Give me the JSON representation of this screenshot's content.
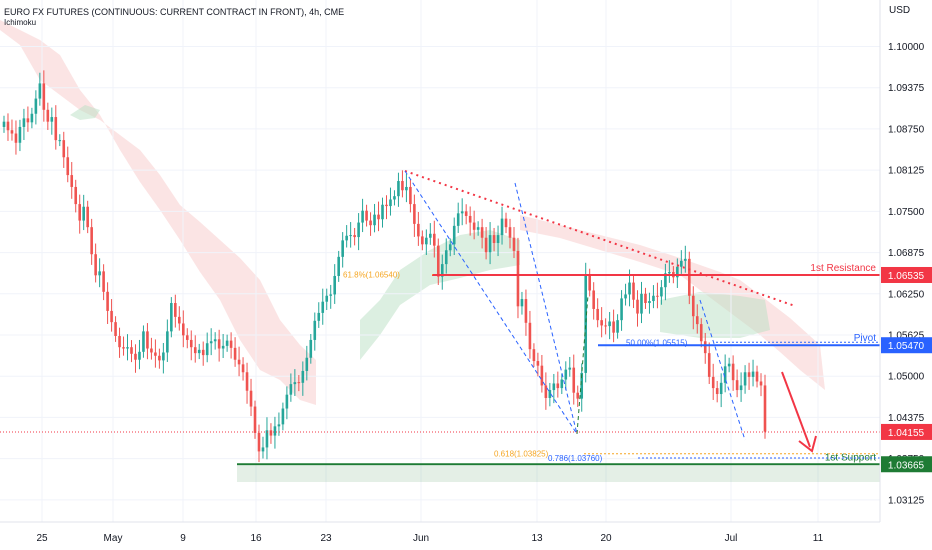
{
  "header": {
    "title": "EURO FX FUTURES (CONTINUOUS: CURRENT CONTRACT IN FRONT), 4h, CME",
    "indicator": "Ichimoku",
    "currency": "USD"
  },
  "chart_data": {
    "type": "candlestick",
    "y_axis": {
      "ticks": [
        "1.10000",
        "1.09375",
        "1.08750",
        "1.08125",
        "1.07500",
        "1.06875",
        "1.06250",
        "1.05625",
        "1.05000",
        "1.04375",
        "1.03750",
        "1.03125"
      ],
      "ylim": [
        1.0285,
        1.1025
      ]
    },
    "x_axis": {
      "ticks": [
        "25",
        "May",
        "9",
        "16",
        "23",
        "Jun",
        "13",
        "20",
        "Jul",
        "11"
      ]
    },
    "price_levels": [
      {
        "name": "1st Resistance",
        "value": 1.06535,
        "label": "1.06535",
        "color": "#f23645"
      },
      {
        "name": "Pivot",
        "value": 1.0547,
        "label": "1.05470",
        "color": "#2962ff"
      },
      {
        "name": "current",
        "value": 1.04155,
        "label": "1.04155",
        "color": "#f23645"
      },
      {
        "name": "1st Support",
        "value": 1.03665,
        "label": "1.03665",
        "color": "#1e7b34"
      }
    ],
    "fib_labels": [
      {
        "text": "61.8%(1.06540)",
        "value": 1.0654,
        "color": "#f5a623"
      },
      {
        "text": "50.00%(1.05515)",
        "value": 1.05515,
        "color": "#2962ff"
      },
      {
        "text": "0.618(1.03825)",
        "value": 1.03825,
        "color": "#f5a623"
      },
      {
        "text": "0.786(1.03760)",
        "value": 1.0376,
        "color": "#2962ff"
      }
    ],
    "candles_close": [
      1.0886,
      1.0873,
      1.0868,
      1.0854,
      1.0878,
      1.0891,
      1.0885,
      1.0898,
      1.0921,
      1.0944,
      1.0904,
      1.0886,
      1.0893,
      1.0858,
      1.0858,
      1.0832,
      1.0805,
      1.0787,
      1.0761,
      1.0736,
      1.0757,
      1.0726,
      1.0685,
      1.0653,
      1.0659,
      1.0628,
      1.0599,
      1.0582,
      1.0561,
      1.0544,
      1.0542,
      1.0544,
      1.0534,
      1.0525,
      1.0537,
      1.0568,
      1.0542,
      1.0536,
      1.0531,
      1.0524,
      1.0536,
      1.0568,
      1.0611,
      1.059,
      1.058,
      1.0562,
      1.0555,
      1.0544,
      1.0535,
      1.054,
      1.0532,
      1.055,
      1.0553,
      1.0556,
      1.0542,
      1.0546,
      1.0554,
      1.0543,
      1.0525,
      1.0518,
      1.0506,
      1.0478,
      1.0454,
      1.0414,
      1.0386,
      1.0392,
      1.0418,
      1.041,
      1.0424,
      1.0427,
      1.0451,
      1.0472,
      1.0488,
      1.0491,
      1.049,
      1.0508,
      1.0528,
      1.0555,
      1.0584,
      1.0596,
      1.0613,
      1.0622,
      1.0624,
      1.0652,
      1.0681,
      1.0706,
      1.0713,
      1.0714,
      1.0711,
      1.0733,
      1.0751,
      1.0736,
      1.0729,
      1.0745,
      1.0738,
      1.076,
      1.0758,
      1.0768,
      1.0773,
      1.0796,
      1.0782,
      1.0787,
      1.0761,
      1.0731,
      1.0712,
      1.07,
      1.071,
      1.0716,
      1.0698,
      1.0651,
      1.067,
      1.0691,
      1.07,
      1.0728,
      1.0747,
      1.075,
      1.0743,
      1.0733,
      1.0722,
      1.0726,
      1.071,
      1.0688,
      1.0714,
      1.0702,
      1.0714,
      1.0739,
      1.0726,
      1.071,
      1.069,
      1.0606,
      1.0617,
      1.0581,
      1.0541,
      1.0523,
      1.0516,
      1.0486,
      1.0467,
      1.0479,
      1.0489,
      1.0482,
      1.0495,
      1.051,
      1.0513,
      1.0475,
      1.0466,
      1.0505,
      1.0654,
      1.063,
      1.0602,
      1.0585,
      1.0577,
      1.0576,
      1.0583,
      1.0566,
      1.0585,
      1.0618,
      1.0624,
      1.0642,
      1.0616,
      1.0595,
      1.0625,
      1.0611,
      1.0614,
      1.0622,
      1.0621,
      1.0635,
      1.0656,
      1.0658,
      1.065,
      1.0666,
      1.0675,
      1.0678,
      1.0622,
      1.0591,
      1.0579,
      1.0553,
      1.0535,
      1.0499,
      1.0482,
      1.0473,
      1.049,
      1.0515,
      1.0519,
      1.0494,
      1.0479,
      1.0486,
      1.0506,
      1.0499,
      1.0507,
      1.0492,
      1.0486,
      1.0416
    ]
  }
}
